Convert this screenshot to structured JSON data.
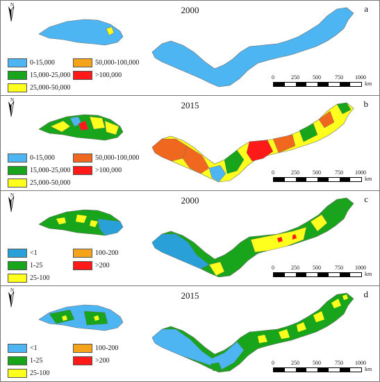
{
  "colors": {
    "c1": "#4db6f2",
    "c2": "#19a51b",
    "c3": "#ffff1e",
    "c4": "#f5a31b",
    "c5": "#ff1a1a",
    "c4b": "#f06820",
    "border": "#6b6b6b"
  },
  "north_label": "N",
  "scale_bar": {
    "ticks": [
      "0",
      "250",
      "500",
      "750",
      "1000"
    ],
    "unit": "km"
  },
  "panels": [
    {
      "letter": "a",
      "year": "2000",
      "legend": [
        {
          "label": "0-15,000",
          "color": "#4db6f2"
        },
        {
          "label": "50,000-100,000",
          "color": "#f5a31b"
        },
        {
          "label": "15,000-25,000",
          "color": "#19a51b"
        },
        {
          "label": ">100,000",
          "color": "#ff1a1a"
        },
        {
          "label": "25,000-50,000",
          "color": "#ffff1e"
        }
      ]
    },
    {
      "letter": "b",
      "year": "2015",
      "legend": [
        {
          "label": "0-15,000",
          "color": "#4db6f2"
        },
        {
          "label": "50,000-100,000",
          "color": "#f06820"
        },
        {
          "label": "15,000-25,000",
          "color": "#19a51b"
        },
        {
          "label": ">100,000",
          "color": "#ff1a1a"
        },
        {
          "label": "25,000-50,000",
          "color": "#ffff1e"
        }
      ]
    },
    {
      "letter": "c",
      "year": "2000",
      "legend": [
        {
          "label": "<1",
          "color": "#2aa0d8"
        },
        {
          "label": "100-200",
          "color": "#f5a31b"
        },
        {
          "label": "1-25",
          "color": "#19a51b"
        },
        {
          "label": ">200",
          "color": "#ff1a1a"
        },
        {
          "label": "25-100",
          "color": "#ffff1e"
        }
      ]
    },
    {
      "letter": "d",
      "year": "2015",
      "legend": [
        {
          "label": "<1",
          "color": "#4db6f2"
        },
        {
          "label": "100-200",
          "color": "#f5a31b"
        },
        {
          "label": "1-25",
          "color": "#19a51b"
        },
        {
          "label": ">200",
          "color": "#ff1a1a"
        },
        {
          "label": "25-100",
          "color": "#ffff1e"
        }
      ]
    }
  ]
}
